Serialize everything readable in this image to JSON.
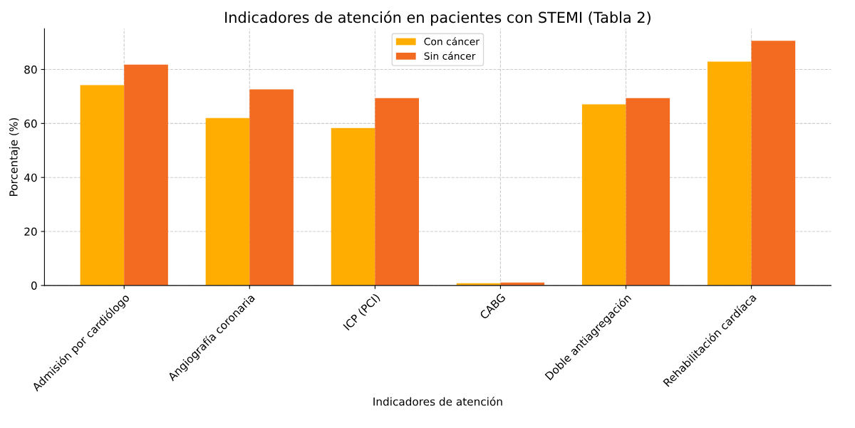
{
  "chart_data": {
    "type": "bar",
    "title": "Indicadores de atención en pacientes con STEMI (Tabla 2)",
    "xlabel": "Indicadores de atención",
    "ylabel": "Porcentaje (%)",
    "categories": [
      "Admisión por cardiólogo",
      "Angiografía coronaria",
      "ICP (PCI)",
      "CABG",
      "Doble antiagregación",
      "Rehabilitación cardíaca"
    ],
    "series": [
      {
        "name": "Con cáncer",
        "color": "#ffad00",
        "values": [
          74.2,
          62.0,
          58.3,
          0.8,
          67.1,
          82.9
        ]
      },
      {
        "name": "Sin cáncer",
        "color": "#f26b21",
        "values": [
          81.8,
          72.6,
          69.4,
          1.1,
          69.4,
          90.6
        ]
      }
    ],
    "ylim": [
      0,
      95.1
    ],
    "yticks": [
      0,
      20,
      40,
      60,
      80
    ],
    "grid": true,
    "legend": "top"
  }
}
